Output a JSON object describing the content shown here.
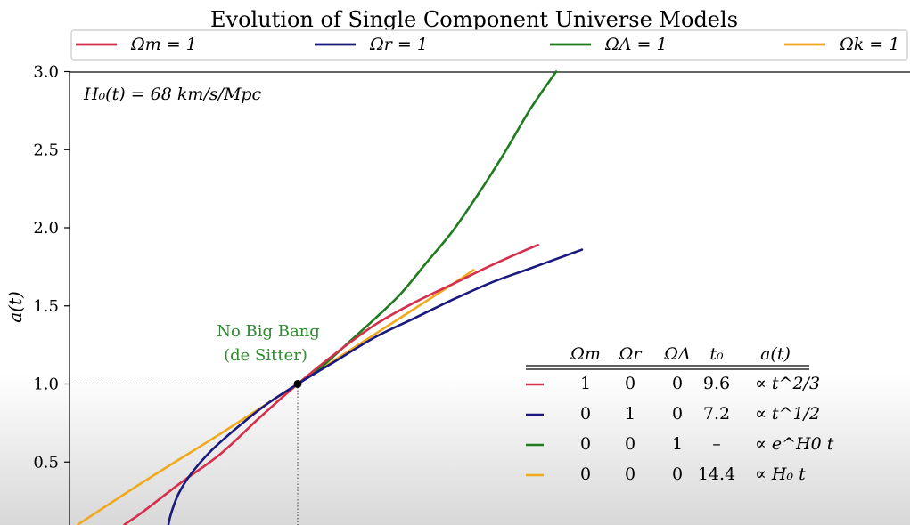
{
  "chart_data": {
    "type": "line",
    "title": "Evolution of Single Component Universe Models",
    "ylabel": "a(t)",
    "xlabel": "",
    "ylim": [
      0,
      3.0
    ],
    "yticks": [
      "0.5",
      "1.0",
      "1.5",
      "2.0",
      "2.5",
      "3.0"
    ],
    "grid": false,
    "legend_position": "top",
    "annotation_box": "H₀(t) = 68 km/s/Mpc",
    "annotation_point_line1": "No Big Bang",
    "annotation_point_line2": "(de Sitter)",
    "annotation_color": "#2e8b2e",
    "series": [
      {
        "name": "Ωm = 1",
        "color": "#d62f4b",
        "t_rel": [
          -0.67,
          -0.6,
          -0.45,
          -0.3,
          -0.15,
          0,
          0.15,
          0.3,
          0.45,
          0.6,
          0.75,
          0.9,
          0.93
        ],
        "a": [
          0.1,
          0.18,
          0.37,
          0.55,
          0.78,
          1.0,
          1.2,
          1.38,
          1.52,
          1.64,
          1.76,
          1.87,
          1.89
        ]
      },
      {
        "name": "Ωr = 1",
        "color": "#1a1a7e",
        "t_rel": [
          -0.5,
          -0.49,
          -0.46,
          -0.41,
          -0.33,
          -0.22,
          -0.12,
          0,
          0.15,
          0.3,
          0.45,
          0.6,
          0.75,
          0.9,
          1.05,
          1.1
        ],
        "a": [
          0.1,
          0.17,
          0.3,
          0.43,
          0.58,
          0.74,
          0.87,
          1.0,
          1.15,
          1.3,
          1.42,
          1.54,
          1.65,
          1.74,
          1.83,
          1.86
        ]
      },
      {
        "name": "ΩΛ = 1",
        "color": "#1e7b1e",
        "t_rel": [
          0,
          0.1,
          0.2,
          0.3,
          0.4,
          0.5,
          0.6,
          0.7,
          0.8,
          0.9,
          1.0
        ],
        "a": [
          1.0,
          1.12,
          1.27,
          1.42,
          1.58,
          1.78,
          1.98,
          2.22,
          2.48,
          2.76,
          3.0
        ]
      },
      {
        "name": "Ωk = 1",
        "color": "#f0a91c",
        "t_rel": [
          -0.85,
          -0.6,
          -0.3,
          0,
          0.3,
          0.6,
          0.68
        ],
        "a": [
          0.1,
          0.37,
          0.68,
          1.0,
          1.32,
          1.64,
          1.73
        ]
      }
    ],
    "point": {
      "a": 1.0,
      "label": ""
    },
    "table": {
      "headers": [
        "Ωm",
        "Ωr",
        "ΩΛ",
        "t₀",
        "a(t)"
      ],
      "rows": [
        {
          "color": "#d62f4b",
          "cells": [
            "1",
            "0",
            "0",
            "9.6",
            "∝ t^2/3"
          ]
        },
        {
          "color": "#1a1a7e",
          "cells": [
            "0",
            "1",
            "0",
            "7.2",
            "∝ t^1/2"
          ]
        },
        {
          "color": "#1e7b1e",
          "cells": [
            "0",
            "0",
            "1",
            "–",
            "∝ e^H0 t"
          ]
        },
        {
          "color": "#f0a91c",
          "cells": [
            "0",
            "0",
            "0",
            "14.4",
            "∝ H₀ t"
          ]
        }
      ]
    }
  }
}
